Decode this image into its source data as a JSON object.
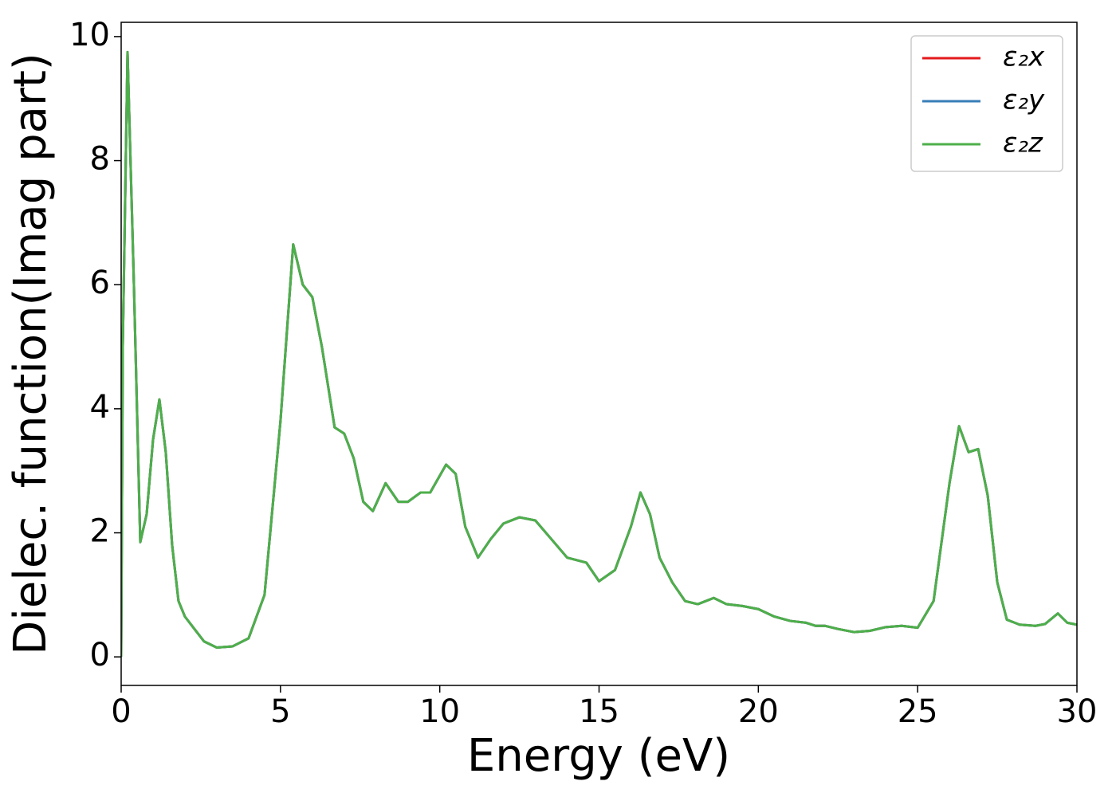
{
  "chart_data": {
    "type": "line",
    "xlabel": "Energy (eV)",
    "ylabel": "Dielec. function(Imag part)",
    "x": [
      0,
      0.05,
      0.2,
      0.4,
      0.6,
      0.8,
      1.0,
      1.2,
      1.4,
      1.6,
      1.8,
      2.0,
      2.3,
      2.6,
      3.0,
      3.5,
      4.0,
      4.5,
      5.0,
      5.4,
      5.7,
      6.0,
      6.3,
      6.7,
      7.0,
      7.3,
      7.6,
      7.9,
      8.3,
      8.7,
      9.0,
      9.4,
      9.7,
      10.2,
      10.5,
      10.8,
      11.2,
      11.6,
      12.0,
      12.5,
      13.0,
      13.5,
      14.0,
      14.6,
      15.0,
      15.5,
      16.0,
      16.3,
      16.6,
      16.9,
      17.3,
      17.7,
      18.1,
      18.6,
      19.0,
      19.5,
      20.0,
      20.5,
      21.0,
      21.5,
      21.8,
      22.1,
      22.5,
      23.0,
      23.5,
      24.0,
      24.5,
      25.0,
      25.5,
      26.0,
      26.3,
      26.6,
      26.9,
      27.2,
      27.5,
      27.8,
      28.2,
      28.7,
      29.0,
      29.4,
      29.7,
      30.0
    ],
    "series": [
      {
        "name": "ε₂x",
        "color": "#e41a1c",
        "values": [
          0,
          5,
          9.75,
          6,
          1.85,
          2.3,
          3.5,
          4.15,
          3.3,
          1.8,
          0.9,
          0.65,
          0.45,
          0.25,
          0.15,
          0.17,
          0.3,
          1.0,
          3.8,
          6.65,
          6.0,
          5.8,
          5.0,
          3.7,
          3.6,
          3.2,
          2.5,
          2.35,
          2.8,
          2.5,
          2.5,
          2.65,
          2.65,
          3.1,
          2.95,
          2.1,
          1.6,
          1.9,
          2.15,
          2.25,
          2.2,
          1.9,
          1.6,
          1.52,
          1.22,
          1.4,
          2.1,
          2.65,
          2.3,
          1.6,
          1.2,
          0.9,
          0.85,
          0.95,
          0.85,
          0.82,
          0.77,
          0.65,
          0.58,
          0.55,
          0.5,
          0.5,
          0.45,
          0.4,
          0.42,
          0.48,
          0.5,
          0.47,
          0.9,
          2.8,
          3.72,
          3.3,
          3.35,
          2.6,
          1.2,
          0.6,
          0.52,
          0.5,
          0.53,
          0.7,
          0.55,
          0.52
        ]
      },
      {
        "name": "ε₂y",
        "color": "#377eb8",
        "values": [
          0,
          5,
          9.75,
          6,
          1.85,
          2.3,
          3.5,
          4.15,
          3.3,
          1.8,
          0.9,
          0.65,
          0.45,
          0.25,
          0.15,
          0.17,
          0.3,
          1.0,
          3.8,
          6.65,
          6.0,
          5.8,
          5.0,
          3.7,
          3.6,
          3.2,
          2.5,
          2.35,
          2.8,
          2.5,
          2.5,
          2.65,
          2.65,
          3.1,
          2.95,
          2.1,
          1.6,
          1.9,
          2.15,
          2.25,
          2.2,
          1.9,
          1.6,
          1.52,
          1.22,
          1.4,
          2.1,
          2.65,
          2.3,
          1.6,
          1.2,
          0.9,
          0.85,
          0.95,
          0.85,
          0.82,
          0.77,
          0.65,
          0.58,
          0.55,
          0.5,
          0.5,
          0.45,
          0.4,
          0.42,
          0.48,
          0.5,
          0.47,
          0.9,
          2.8,
          3.72,
          3.3,
          3.35,
          2.6,
          1.2,
          0.6,
          0.52,
          0.5,
          0.53,
          0.7,
          0.55,
          0.52
        ]
      },
      {
        "name": "ε₂z",
        "color": "#4daf4a",
        "values": [
          0,
          5,
          9.75,
          6,
          1.85,
          2.3,
          3.5,
          4.15,
          3.3,
          1.8,
          0.9,
          0.65,
          0.45,
          0.25,
          0.15,
          0.17,
          0.3,
          1.0,
          3.8,
          6.65,
          6.0,
          5.8,
          5.0,
          3.7,
          3.6,
          3.2,
          2.5,
          2.35,
          2.8,
          2.5,
          2.5,
          2.65,
          2.65,
          3.1,
          2.95,
          2.1,
          1.6,
          1.9,
          2.15,
          2.25,
          2.2,
          1.9,
          1.6,
          1.52,
          1.22,
          1.4,
          2.1,
          2.65,
          2.3,
          1.6,
          1.2,
          0.9,
          0.85,
          0.95,
          0.85,
          0.82,
          0.77,
          0.65,
          0.58,
          0.55,
          0.5,
          0.5,
          0.45,
          0.4,
          0.42,
          0.48,
          0.5,
          0.47,
          0.9,
          2.8,
          3.72,
          3.3,
          3.35,
          2.6,
          1.2,
          0.6,
          0.52,
          0.5,
          0.53,
          0.7,
          0.55,
          0.52
        ]
      }
    ],
    "xlim": [
      0,
      30
    ],
    "xticks": [
      0,
      5,
      10,
      15,
      20,
      25,
      30
    ],
    "ylim": [
      -0.46,
      10.23
    ],
    "yticks": [
      0,
      2,
      4,
      6,
      8,
      10
    ],
    "grid": false,
    "legend": "upper right"
  }
}
